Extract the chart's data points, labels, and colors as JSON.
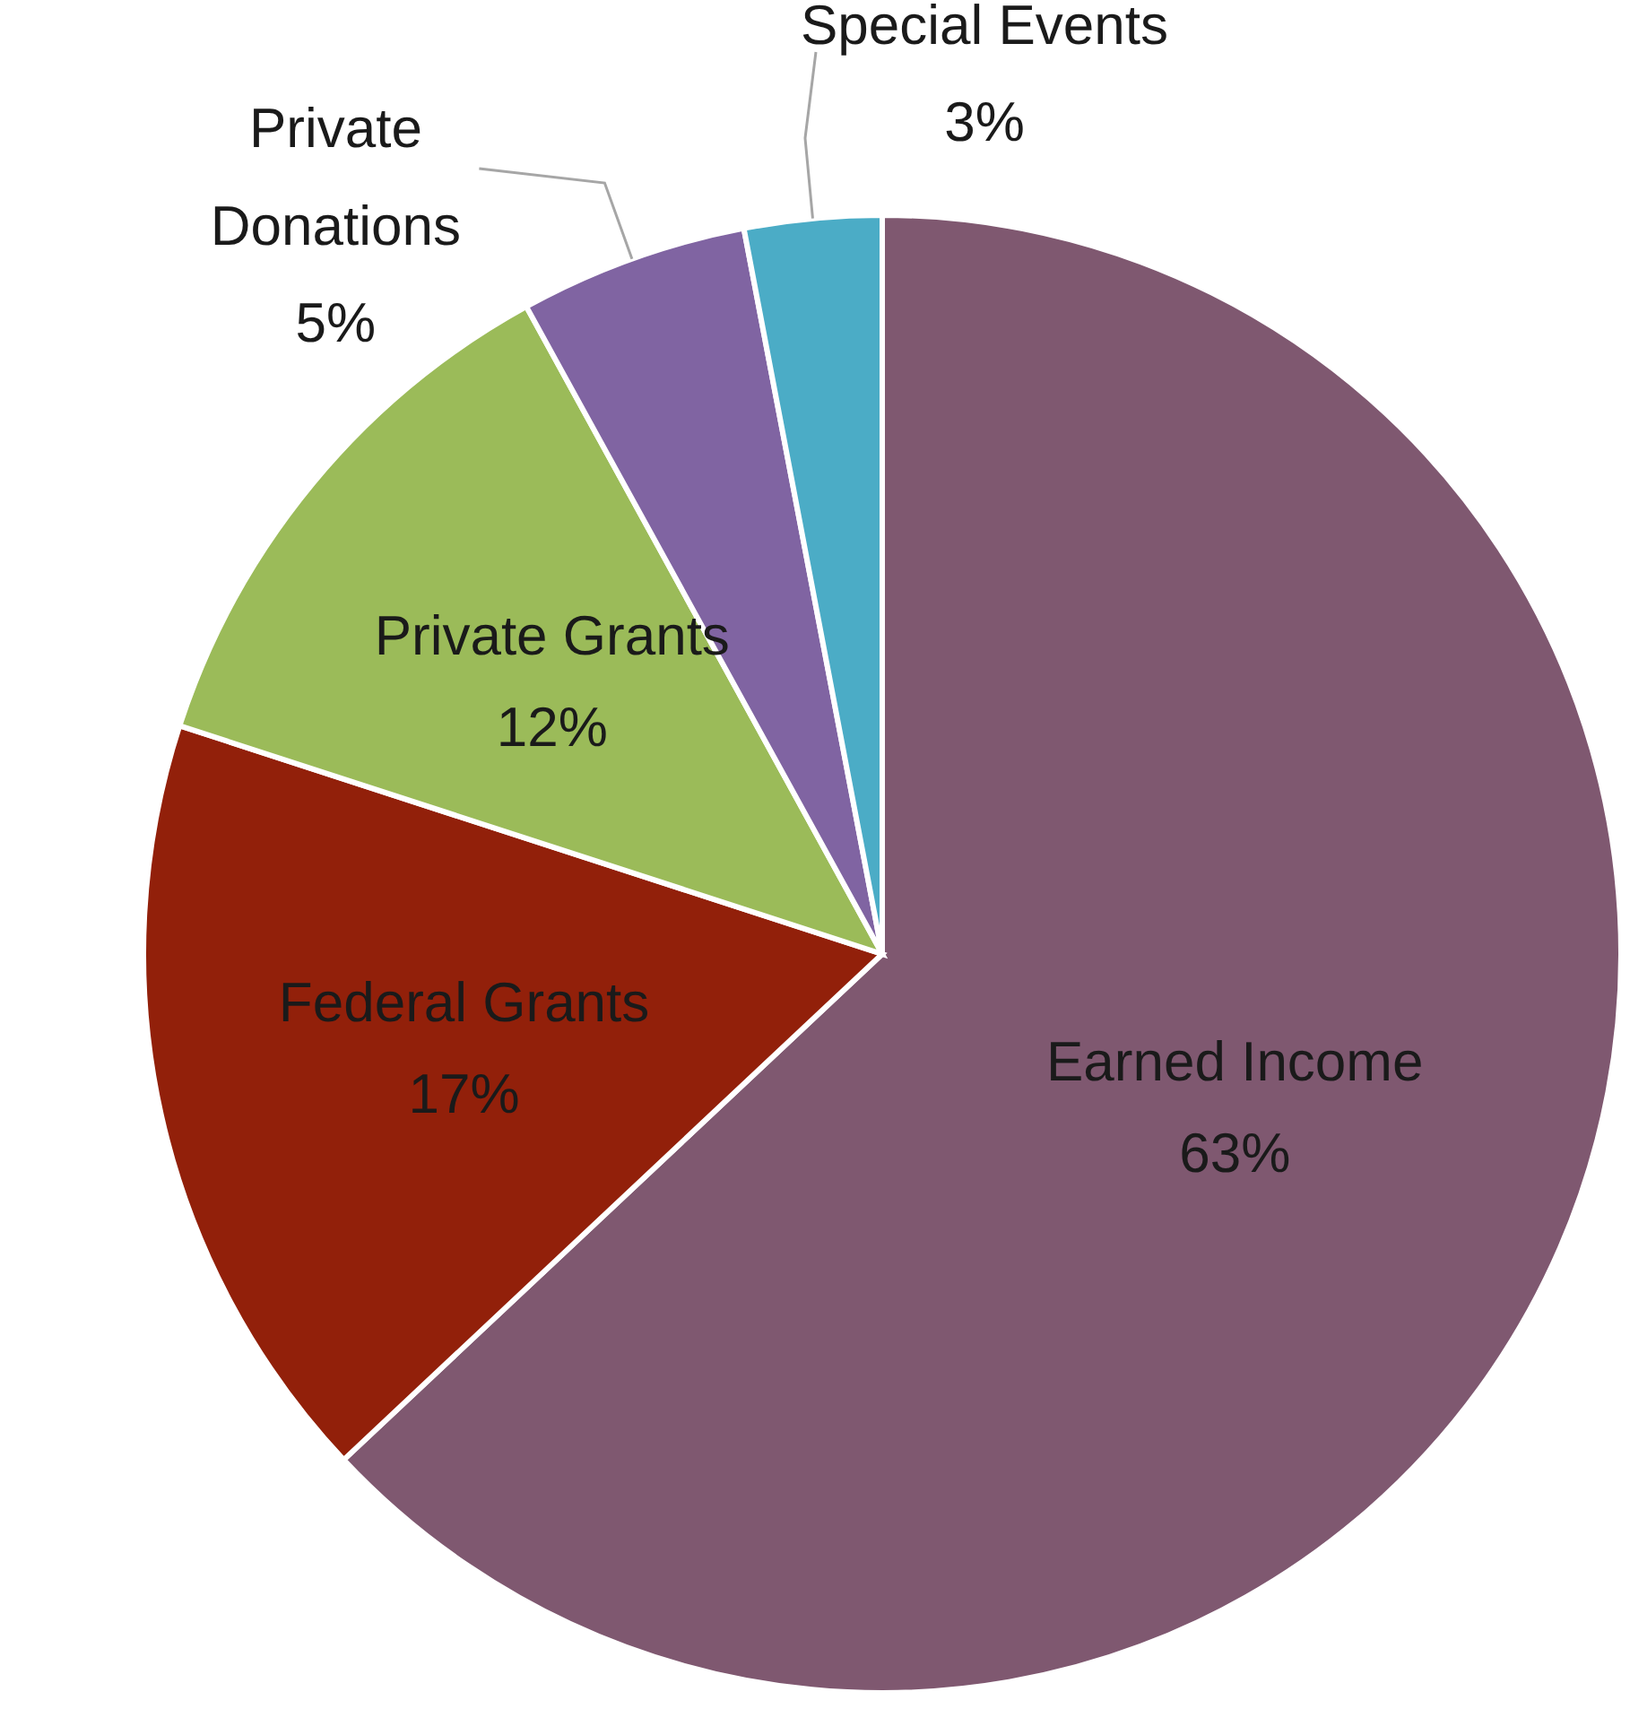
{
  "chart_data": {
    "type": "pie",
    "categories": [
      "Earned Income",
      "Federal Grants",
      "Private Grants",
      "Private Donations",
      "Special Events"
    ],
    "values": [
      63,
      17,
      12,
      5,
      3
    ],
    "colors": [
      "#7f5870",
      "#92200a",
      "#9bbb59",
      "#8064a2",
      "#4bacc6"
    ],
    "value_labels": [
      "63%",
      "17%",
      "12%",
      "5%",
      "3%"
    ]
  }
}
